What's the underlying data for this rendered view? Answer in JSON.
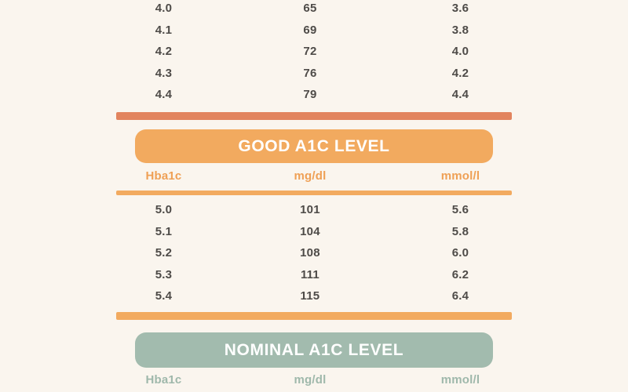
{
  "colors": {
    "bg": "#faf5ee",
    "terracotta": "#e2845e",
    "orange": "#f2aa5f",
    "orange_text": "#efa055",
    "green": "#a2bbae",
    "green_text": "#9fb8ab",
    "text": "#4e4b48",
    "white": "#ffffff"
  },
  "table": {
    "columns": [
      "Hba1c",
      "mg/dl",
      "mmol/l"
    ],
    "sections": [
      {
        "id": "previous-partial",
        "rows": [
          [
            "4.0",
            "65",
            "3.6"
          ],
          [
            "4.1",
            "69",
            "3.8"
          ],
          [
            "4.2",
            "72",
            "4.0"
          ],
          [
            "4.3",
            "76",
            "4.2"
          ],
          [
            "4.4",
            "79",
            "4.4"
          ]
        ]
      },
      {
        "id": "good",
        "title": "GOOD A1C LEVEL",
        "rows": [
          [
            "5.0",
            "101",
            "5.6"
          ],
          [
            "5.1",
            "104",
            "5.8"
          ],
          [
            "5.2",
            "108",
            "6.0"
          ],
          [
            "5.3",
            "111",
            "6.2"
          ],
          [
            "5.4",
            "115",
            "6.4"
          ]
        ]
      },
      {
        "id": "nominal",
        "title": "NOMINAL A1C LEVEL",
        "rows": []
      }
    ]
  },
  "chart_data": {
    "type": "table",
    "title": "A1C level conversion chart (cropped view)",
    "columns": [
      "Hba1c",
      "mg/dl",
      "mmol/l"
    ],
    "sections": [
      {
        "title": null,
        "note": "section title cropped out of view above frame",
        "rows": [
          [
            4.0,
            65,
            3.6
          ],
          [
            4.1,
            69,
            3.8
          ],
          [
            4.2,
            72,
            4.0
          ],
          [
            4.3,
            76,
            4.2
          ],
          [
            4.4,
            79,
            4.4
          ]
        ]
      },
      {
        "title": "GOOD A1C LEVEL",
        "rows": [
          [
            5.0,
            101,
            5.6
          ],
          [
            5.1,
            104,
            5.8
          ],
          [
            5.2,
            108,
            6.0
          ],
          [
            5.3,
            111,
            6.2
          ],
          [
            5.4,
            115,
            6.4
          ]
        ]
      },
      {
        "title": "NOMINAL A1C LEVEL",
        "rows": []
      }
    ]
  }
}
